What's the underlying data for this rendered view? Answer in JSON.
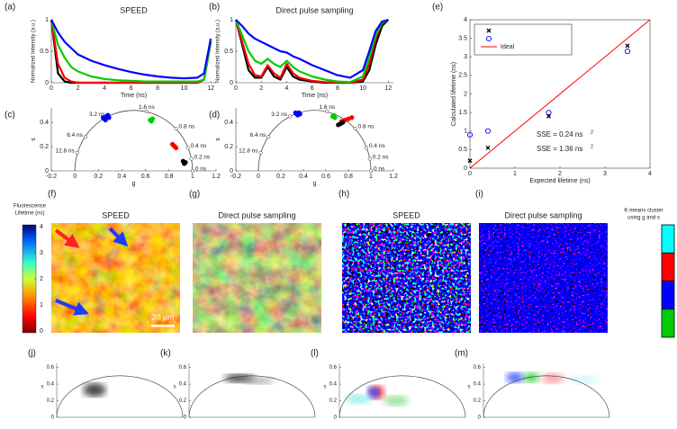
{
  "chart_data": [
    {
      "type": "line",
      "label": "(a)",
      "title": "SPEED",
      "xlabel": "Time (ns)",
      "ylabel": "Normalized Intensity (a.u.)",
      "x": [
        0,
        0.5,
        1,
        1.5,
        2,
        3,
        4,
        5,
        6,
        7,
        8,
        9,
        10,
        11,
        11.5,
        12
      ],
      "xlim": [
        0,
        12.4
      ],
      "xticks": [
        0,
        2,
        4,
        6,
        8,
        10,
        12
      ],
      "ylim": [
        0,
        1
      ],
      "yticks": [
        0,
        0.5,
        1
      ],
      "series": [
        {
          "color": "#000000",
          "values": [
            1,
            0.15,
            0.02,
            0,
            0,
            0,
            0,
            0,
            0,
            0,
            0,
            0,
            0,
            0,
            0.05,
            0.65
          ]
        },
        {
          "color": "#ff0000",
          "values": [
            1,
            0.3,
            0.08,
            0.02,
            0,
            0,
            0,
            0,
            0,
            0,
            0,
            0,
            0,
            0,
            0.05,
            0.65
          ]
        },
        {
          "color": "#00cc00",
          "values": [
            1,
            0.6,
            0.4,
            0.25,
            0.18,
            0.1,
            0.06,
            0.04,
            0.03,
            0.02,
            0.02,
            0.02,
            0.02,
            0.02,
            0.05,
            0.65
          ]
        },
        {
          "color": "#0000ff",
          "values": [
            1,
            0.8,
            0.65,
            0.55,
            0.45,
            0.35,
            0.28,
            0.22,
            0.17,
            0.13,
            0.1,
            0.08,
            0.07,
            0.08,
            0.15,
            0.7
          ]
        }
      ]
    },
    {
      "type": "line",
      "label": "(b)",
      "title": "Direct pulse sampling",
      "xlabel": "Time (ns)",
      "ylabel": "Normalized Intensity (a.u.)",
      "x": [
        0,
        0.5,
        1,
        1.5,
        2,
        2.5,
        3,
        3.5,
        4,
        4.5,
        5,
        6,
        7,
        8,
        9,
        10,
        10.5,
        11,
        11.5,
        12
      ],
      "xlim": [
        0,
        12.4
      ],
      "xticks": [
        0,
        2,
        4,
        6,
        8,
        10,
        12
      ],
      "ylim": [
        0,
        1
      ],
      "yticks": [
        0,
        0.5,
        1
      ],
      "series": [
        {
          "color": "#000000",
          "values": [
            1,
            0.6,
            0.2,
            0.08,
            0.08,
            0.25,
            0.1,
            0.05,
            0.25,
            0.1,
            0.05,
            0.02,
            0,
            0,
            0,
            0.02,
            0.2,
            0.6,
            0.9,
            1
          ]
        },
        {
          "color": "#ff0000",
          "values": [
            1,
            0.65,
            0.3,
            0.12,
            0.1,
            0.28,
            0.15,
            0.08,
            0.3,
            0.15,
            0.08,
            0.03,
            0.01,
            0,
            0,
            0.05,
            0.3,
            0.7,
            0.95,
            1
          ]
        },
        {
          "color": "#00cc00",
          "values": [
            1,
            0.75,
            0.5,
            0.35,
            0.3,
            0.38,
            0.3,
            0.25,
            0.35,
            0.25,
            0.18,
            0.1,
            0.05,
            0.02,
            0.01,
            0.1,
            0.4,
            0.75,
            0.95,
            1
          ]
        },
        {
          "color": "#0000ff",
          "values": [
            1,
            0.9,
            0.78,
            0.7,
            0.65,
            0.6,
            0.55,
            0.5,
            0.48,
            0.42,
            0.38,
            0.28,
            0.2,
            0.12,
            0.08,
            0.2,
            0.5,
            0.82,
            0.97,
            1
          ]
        }
      ]
    },
    {
      "type": "phasor",
      "label": "(c)",
      "xlabel": "g",
      "ylabel": "s",
      "xlim": [
        -0.2,
        1.2
      ],
      "xticks": [
        -0.2,
        0,
        0.2,
        0.4,
        0.6,
        0.8,
        1,
        1.2
      ],
      "ylim": [
        0,
        0.52
      ],
      "yticks": [
        0,
        0.2,
        0.4
      ],
      "lifetimes": [
        {
          "label": "0 ns",
          "g": 1,
          "s": 0
        },
        {
          "label": "0.2 ns",
          "g": 0.99,
          "s": 0.1
        },
        {
          "label": "0.4 ns",
          "g": 0.96,
          "s": 0.19
        },
        {
          "label": "0.8 ns",
          "g": 0.86,
          "s": 0.35
        },
        {
          "label": "1.6 ns",
          "g": 0.61,
          "s": 0.49
        },
        {
          "label": "3.2 ns",
          "g": 0.28,
          "s": 0.45
        },
        {
          "label": "6.4 ns",
          "g": 0.09,
          "s": 0.28
        },
        {
          "label": "12.8 ns",
          "g": 0.02,
          "s": 0.15
        }
      ],
      "series": [
        {
          "color": "#0000ff",
          "x": [
            0.25,
            0.27,
            0.29,
            0.26,
            0.28,
            0.24
          ],
          "values": [
            0.43,
            0.45,
            0.44,
            0.42,
            0.46,
            0.44
          ]
        },
        {
          "color": "#00cc00",
          "x": [
            0.64,
            0.66,
            0.65
          ],
          "values": [
            0.42,
            0.43,
            0.41
          ]
        },
        {
          "color": "#ff0000",
          "x": [
            0.83,
            0.85,
            0.84,
            0.86
          ],
          "values": [
            0.22,
            0.2,
            0.21,
            0.19
          ]
        },
        {
          "color": "#000000",
          "x": [
            0.92,
            0.93,
            0.94
          ],
          "values": [
            0.08,
            0.06,
            0.07
          ]
        }
      ]
    },
    {
      "type": "phasor",
      "label": "(d)",
      "xlabel": "g",
      "ylabel": "s",
      "xlim": [
        -0.2,
        1.2
      ],
      "xticks": [
        -0.2,
        0,
        0.2,
        0.4,
        0.6,
        0.8,
        1,
        1.2
      ],
      "ylim": [
        0,
        0.52
      ],
      "yticks": [
        0,
        0.2,
        0.4
      ],
      "lifetimes": [
        {
          "label": "0 ns",
          "g": 1,
          "s": 0
        },
        {
          "label": "0.2 ns",
          "g": 0.99,
          "s": 0.1
        },
        {
          "label": "0.4 ns",
          "g": 0.96,
          "s": 0.19
        },
        {
          "label": "0.8 ns",
          "g": 0.86,
          "s": 0.35
        },
        {
          "label": "1.6 ns",
          "g": 0.61,
          "s": 0.49
        },
        {
          "label": "3.2 ns",
          "g": 0.28,
          "s": 0.45
        },
        {
          "label": "6.4 ns",
          "g": 0.09,
          "s": 0.28
        },
        {
          "label": "12.8 ns",
          "g": 0.02,
          "s": 0.15
        }
      ],
      "series": [
        {
          "color": "#0000ff",
          "x": [
            0.34,
            0.36,
            0.35,
            0.37,
            0.33
          ],
          "values": [
            0.47,
            0.48,
            0.46,
            0.47,
            0.48
          ]
        },
        {
          "color": "#00cc00",
          "x": [
            0.66,
            0.68,
            0.67
          ],
          "values": [
            0.45,
            0.44,
            0.46
          ]
        },
        {
          "color": "#ff0000",
          "x": [
            0.74,
            0.77,
            0.8,
            0.83
          ],
          "values": [
            0.41,
            0.42,
            0.43,
            0.44
          ]
        },
        {
          "color": "#000000",
          "x": [
            0.71,
            0.73,
            0.75
          ],
          "values": [
            0.38,
            0.39,
            0.4
          ]
        }
      ]
    },
    {
      "type": "scatter",
      "label": "(e)",
      "xlabel": "Expected lifetime (ns)",
      "ylabel": "Calculated lifetime (ns)",
      "xlim": [
        0,
        4
      ],
      "xticks": [
        0,
        1,
        2,
        3,
        4
      ],
      "ylim": [
        0,
        4
      ],
      "yticks": [
        0,
        0.5,
        1,
        1.5,
        2,
        2.5,
        3,
        3.5,
        4
      ],
      "series": [
        {
          "color": "#000000",
          "marker": "x",
          "x": [
            0,
            0.4,
            1.75,
            3.5
          ],
          "values": [
            0.2,
            0.55,
            1.4,
            3.3
          ]
        },
        {
          "color": "#0000ff",
          "marker": "o",
          "x": [
            0,
            0.4,
            1.75,
            3.5
          ],
          "values": [
            0.9,
            1.0,
            1.5,
            3.15
          ]
        },
        {
          "name": "Ideal",
          "color": "#ff0000",
          "marker": "line",
          "x": [
            0,
            4
          ],
          "values": [
            0,
            4
          ]
        }
      ],
      "annotations": [
        {
          "text": "SSE = 0.24 ns",
          "sup": "2",
          "color": "#000000"
        },
        {
          "text": "SSE = 1.36 ns",
          "sup": "2",
          "color": "#0000ff"
        }
      ]
    }
  ],
  "image_panels": [
    {
      "label": "(f)",
      "title": "SPEED"
    },
    {
      "label": "(g)",
      "title": "Direct pulse sampling"
    },
    {
      "label": "(h)",
      "title": "SPEED"
    },
    {
      "label": "(i)",
      "title": "Direct pulse sampling"
    }
  ],
  "scale_bar": "20 μm",
  "colorbar": {
    "title_lines": [
      "Fluorescence",
      "Lifetime (ns)"
    ],
    "ticks": [
      0,
      1,
      2,
      3,
      4
    ]
  },
  "kmeans_legend": {
    "title_lines": [
      "K-means cluster",
      "using g and s"
    ],
    "colors": [
      "#00ffff",
      "#ff0000",
      "#0000ff",
      "#00cc00"
    ]
  },
  "density_panels": {
    "ylabel": "s",
    "ylim": [
      0,
      0.65
    ],
    "yticks": [
      0,
      0.2,
      0.4,
      0.6
    ],
    "panels": [
      {
        "label": "(j)"
      },
      {
        "label": "(k)"
      },
      {
        "label": "(l)"
      },
      {
        "label": "(m)"
      }
    ]
  }
}
